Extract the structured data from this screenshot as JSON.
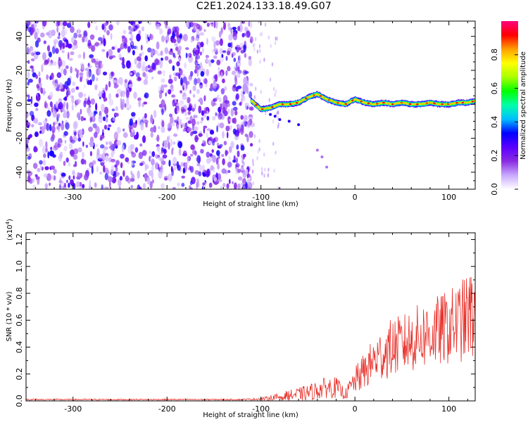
{
  "title": "C2E1.2024.133.18.49.G07",
  "chart_data": [
    {
      "type": "heatmap",
      "xlabel": "Height of straight line (km)",
      "ylabel": "Frequency (Hz)",
      "xlim": [
        -350,
        128
      ],
      "ylim": [
        -50,
        49
      ],
      "xticks": [
        -300,
        -200,
        -100,
        0,
        100
      ],
      "yticks": [
        -40,
        -20,
        0,
        20,
        40
      ],
      "colorbar": {
        "label": "Normalized spectral amplitude",
        "range": [
          0.0,
          1.0
        ],
        "ticks": [
          "0.0",
          "0.2",
          "0.4",
          "0.6",
          "0.8"
        ],
        "colors": [
          "#ffffff",
          "#c9a8ff",
          "#8a2be2",
          "#5a00ff",
          "#0000ff",
          "#00bfff",
          "#00ffaa",
          "#00ff00",
          "#aaff00",
          "#ffff00",
          "#ffa000",
          "#ff0000",
          "#ff007f"
        ]
      },
      "noise_region": {
        "x": [
          -350,
          -110
        ],
        "typical_amplitude": 0.1
      },
      "signal_trace": {
        "x": [
          -110,
          -100,
          -90,
          -80,
          -70,
          -60,
          -50,
          -40,
          -30,
          -20,
          -10,
          0,
          10,
          20,
          30,
          40,
          50,
          60,
          70,
          80,
          90,
          100,
          110,
          120,
          128
        ],
        "frequency": [
          2,
          -3,
          -2,
          0,
          0,
          1,
          4,
          6,
          3,
          1,
          0,
          3,
          1,
          0,
          1,
          0,
          1,
          0,
          0,
          1,
          0,
          0,
          1,
          1,
          2
        ],
        "peak_amplitude": 0.85
      },
      "grid": false
    },
    {
      "type": "line",
      "xlabel": "Height of straight line (km)",
      "ylabel": "SNR (10 * v/v)",
      "y_multiplier": "(x10",
      "y_multiplier_exp": "4",
      "y_multiplier_close": ")",
      "xlim": [
        -350,
        128
      ],
      "ylim": [
        0,
        1.25
      ],
      "xticks": [
        -300,
        -200,
        -100,
        0,
        100
      ],
      "yticks": [
        "0.0",
        "0.2",
        "0.4",
        "0.6",
        "0.8",
        "1.0",
        "1.2"
      ],
      "series": [
        {
          "color": "#e8302a",
          "x": [
            -350,
            -300,
            -200,
            -120,
            -100,
            -90,
            -80,
            -70,
            -60,
            -50,
            -40,
            -30,
            -20,
            -10,
            0,
            10,
            20,
            30,
            40,
            50,
            60,
            70,
            80,
            90,
            100,
            110,
            120,
            128
          ],
          "y_mean": [
            0.01,
            0.01,
            0.01,
            0.01,
            0.015,
            0.02,
            0.03,
            0.04,
            0.05,
            0.06,
            0.08,
            0.1,
            0.1,
            0.05,
            0.15,
            0.22,
            0.3,
            0.35,
            0.4,
            0.42,
            0.45,
            0.48,
            0.5,
            0.52,
            0.55,
            0.58,
            0.62,
            0.66
          ],
          "y_spread": [
            0.005,
            0.005,
            0.005,
            0.005,
            0.01,
            0.02,
            0.03,
            0.04,
            0.05,
            0.06,
            0.07,
            0.08,
            0.08,
            0.04,
            0.1,
            0.14,
            0.17,
            0.2,
            0.22,
            0.22,
            0.24,
            0.25,
            0.26,
            0.27,
            0.28,
            0.3,
            0.33,
            0.35
          ]
        }
      ],
      "grid": false
    }
  ]
}
